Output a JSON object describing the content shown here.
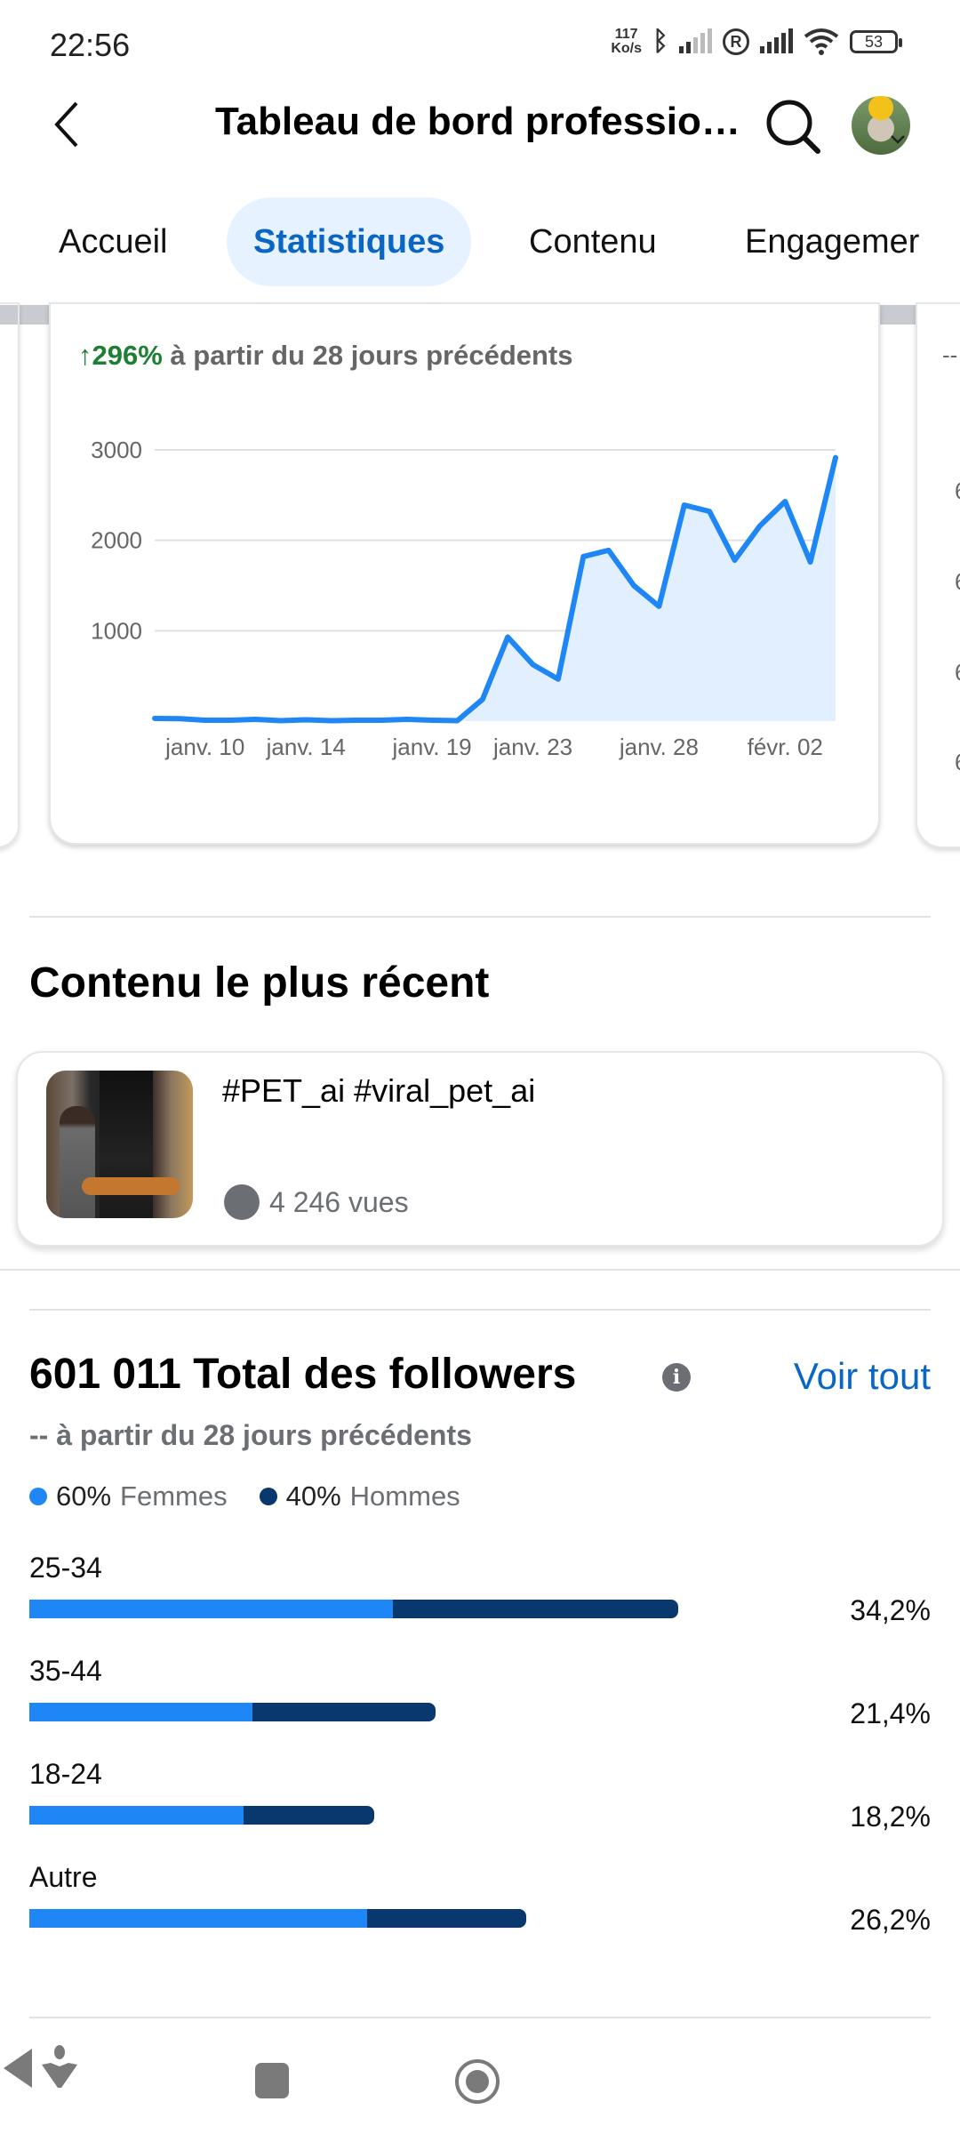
{
  "status_bar": {
    "time": "22:56",
    "net_speed": "117",
    "net_unit": "Ko/s",
    "battery": "53"
  },
  "header": {
    "title": "Tableau de bord professio…",
    "back_icon": "chevron-left-icon",
    "search_icon": "search-icon"
  },
  "tabs": [
    {
      "label": "Accueil",
      "active": false
    },
    {
      "label": "Statistiques",
      "active": true
    },
    {
      "label": "Contenu",
      "active": false
    },
    {
      "label": "Engagemer",
      "active": false
    }
  ],
  "views_card": {
    "change_arrow": "↑",
    "change_value": "296%",
    "change_text": " à partir du 28 jours précédents"
  },
  "side_card": {
    "dash": "--",
    "partial_ticks": [
      "6",
      "6",
      "6",
      "6"
    ]
  },
  "chart_data": {
    "type": "area",
    "x": [
      "janv. 08",
      "janv. 09",
      "janv. 10",
      "janv. 11",
      "janv. 12",
      "janv. 13",
      "janv. 14",
      "janv. 15",
      "janv. 16",
      "janv. 17",
      "janv. 18",
      "janv. 19",
      "janv. 20",
      "janv. 21",
      "janv. 22",
      "janv. 23",
      "janv. 24",
      "janv. 25",
      "janv. 26",
      "janv. 27",
      "janv. 28",
      "janv. 29",
      "janv. 30",
      "janv. 31",
      "févr. 01",
      "févr. 02",
      "févr. 03",
      "févr. 04"
    ],
    "values": [
      30,
      27,
      10,
      10,
      20,
      5,
      15,
      5,
      10,
      10,
      20,
      10,
      5,
      240,
      930,
      625,
      465,
      1820,
      1890,
      1500,
      1270,
      2390,
      2320,
      1780,
      2160,
      2430,
      1760,
      2915
    ],
    "x_tick_labels": [
      "janv. 10",
      "janv. 14",
      "janv. 19",
      "janv. 23",
      "janv. 28",
      "févr. 02"
    ],
    "x_tick_index": [
      2,
      6,
      11,
      15,
      20,
      25
    ],
    "y_ticks": [
      1000,
      2000,
      3000
    ],
    "ylim": [
      0,
      3000
    ],
    "grid": true,
    "colors": {
      "line": "#1f87f5",
      "fill": "#e1efff",
      "grid": "#dde0e3"
    }
  },
  "recent": {
    "heading": "Contenu le plus récent",
    "item": {
      "title": "#PET_ai #viral_pet_ai",
      "views": "4 246 vues"
    }
  },
  "followers": {
    "title": "601 011 Total des followers",
    "info_icon": "info-icon",
    "see_all": "Voir tout",
    "subtitle": "-- à partir du 28 jours précédents",
    "legend": [
      {
        "pct": "60%",
        "label": "Femmes",
        "color": "#1f87f5"
      },
      {
        "pct": "40%",
        "label": "Hommes",
        "color": "#08386e"
      }
    ],
    "ages": [
      {
        "label": "25-34",
        "pct": "34,2%",
        "value": 34.2,
        "femmes_share": 0.56
      },
      {
        "label": "35-44",
        "pct": "21,4%",
        "value": 21.4,
        "femmes_share": 0.55
      },
      {
        "label": "18-24",
        "pct": "18,2%",
        "value": 18.2,
        "femmes_share": 0.62
      },
      {
        "label": "Autre",
        "pct": "26,2%",
        "value": 26.2,
        "femmes_share": 0.68
      }
    ]
  },
  "nav_bar": {
    "icons": [
      "recents-icon",
      "home-icon",
      "back-icon",
      "accessibility-icon"
    ]
  }
}
